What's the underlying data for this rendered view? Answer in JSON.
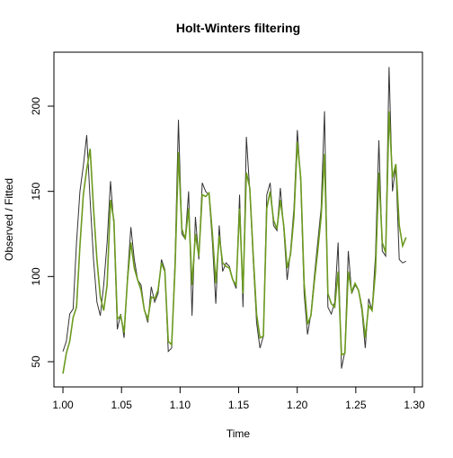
{
  "chart_data": {
    "type": "line",
    "title": "Holt-Winters filtering",
    "xlabel": "Time",
    "ylabel": "Observed / Fitted",
    "x": [
      1,
      1.0029,
      1.0058,
      1.0087,
      1.0116,
      1.0145,
      1.0174,
      1.0203,
      1.0232,
      1.0261,
      1.029,
      1.0319,
      1.0348,
      1.0377,
      1.0406,
      1.0435,
      1.0464,
      1.0493,
      1.0522,
      1.0551,
      1.058,
      1.0609,
      1.0638,
      1.0667,
      1.0696,
      1.0725,
      1.0754,
      1.0783,
      1.0812,
      1.0841,
      1.087,
      1.0899,
      1.0928,
      1.0957,
      1.0986,
      1.1015,
      1.1044,
      1.1073,
      1.1102,
      1.1131,
      1.116,
      1.1189,
      1.1218,
      1.1247,
      1.1276,
      1.1305,
      1.1334,
      1.1363,
      1.1392,
      1.1421,
      1.145,
      1.1479,
      1.1508,
      1.1537,
      1.1566,
      1.1595,
      1.1624,
      1.1653,
      1.1682,
      1.1711,
      1.174,
      1.1769,
      1.1798,
      1.1827,
      1.1856,
      1.1885,
      1.1914,
      1.1943,
      1.1972,
      1.2001,
      1.203,
      1.2059,
      1.2088,
      1.2117,
      1.2146,
      1.2175,
      1.2204,
      1.2233,
      1.2262,
      1.2291,
      1.232,
      1.2349,
      1.2378,
      1.2407,
      1.2436,
      1.2465,
      1.2494,
      1.2523,
      1.2552,
      1.2581,
      1.261,
      1.2639,
      1.2668,
      1.2697,
      1.2726,
      1.2755,
      1.2784,
      1.2813,
      1.2842,
      1.2871,
      1.29,
      1.2929
    ],
    "series": [
      {
        "color": "#333333",
        "values": [
          56,
          62,
          78,
          81,
          120,
          150,
          165,
          183,
          145,
          110,
          85,
          77,
          95,
          120,
          156,
          130,
          69,
          78,
          64,
          100,
          129,
          110,
          98,
          95,
          80,
          73,
          94,
          85,
          90,
          110,
          104,
          56,
          58,
          110,
          192,
          125,
          122,
          150,
          77,
          135,
          110,
          155,
          150,
          148,
          120,
          84,
          130,
          103,
          108,
          106,
          98,
          93,
          148,
          82,
          182,
          150,
          110,
          73,
          58,
          65,
          148,
          155,
          130,
          127,
          152,
          128,
          98,
          115,
          140,
          186,
          155,
          90,
          66,
          78,
          100,
          120,
          140,
          197,
          82,
          78,
          85,
          120,
          46,
          56,
          115,
          90,
          95,
          92,
          80,
          58,
          87,
          80,
          112,
          180,
          115,
          112,
          223,
          150,
          165,
          110,
          108,
          109
        ]
      },
      {
        "color": "#6b9a1f",
        "values": [
          43,
          55,
          62,
          76,
          82,
          118,
          148,
          163,
          175,
          140,
          110,
          88,
          80,
          95,
          145,
          133,
          75,
          77,
          67,
          98,
          120,
          105,
          98,
          92,
          80,
          75,
          88,
          87,
          92,
          108,
          103,
          62,
          60,
          105,
          173,
          128,
          122,
          140,
          95,
          125,
          112,
          148,
          147,
          149,
          125,
          96,
          124,
          108,
          106,
          105,
          98,
          95,
          140,
          90,
          161,
          152,
          113,
          78,
          64,
          65,
          140,
          150,
          133,
          128,
          145,
          130,
          105,
          113,
          135,
          179,
          158,
          96,
          72,
          77,
          97,
          115,
          135,
          172,
          90,
          84,
          82,
          103,
          54,
          55,
          103,
          91,
          96,
          92,
          82,
          64,
          83,
          80,
          103,
          161,
          120,
          114,
          197,
          158,
          166,
          130,
          118,
          123
        ]
      }
    ],
    "xlim": [
      0.9923,
      1.3069
    ],
    "ylim": [
      35.2,
      231.7
    ],
    "xticks": [
      {
        "value": 1.0,
        "label": "1.00"
      },
      {
        "value": 1.05,
        "label": "1.05"
      },
      {
        "value": 1.1,
        "label": "1.10"
      },
      {
        "value": 1.15,
        "label": "1.15"
      },
      {
        "value": 1.2,
        "label": "1.20"
      },
      {
        "value": 1.25,
        "label": "1.25"
      },
      {
        "value": 1.3,
        "label": "1.30"
      }
    ],
    "yticks": [
      50,
      100,
      150,
      200
    ]
  }
}
